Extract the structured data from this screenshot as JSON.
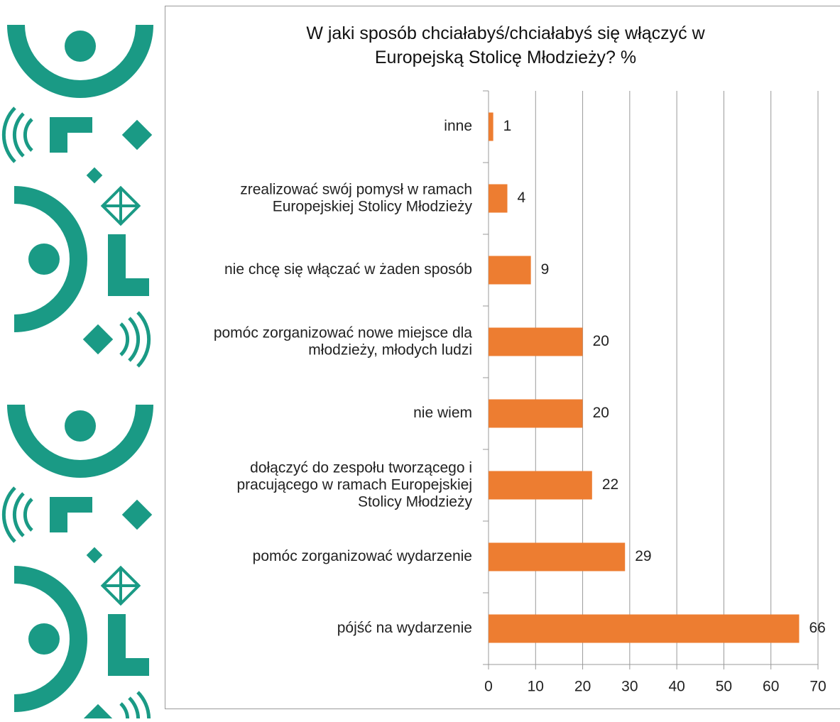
{
  "chart_data": {
    "type": "bar",
    "orientation": "horizontal",
    "title": "W jaki sposób chciałabyś/chciałabyś się włączyć w\nEuropejską Stolicę Młodzieży? %",
    "categories": [
      "inne",
      "zrealizować swój pomysł w ramach\nEuropejskiej Stolicy Młodzieży",
      "nie chcę się włączać w żaden sposób",
      "pomóc zorganizować nowe miejsce dla\nmłodzieży, młodych ludzi",
      "nie wiem",
      "dołączyć do zespołu tworzącego i\npracującego w ramach Europejskiej\nStolicy Młodzieży",
      "pomóc zorganizować wydarzenie",
      "pójść na wydarzenie"
    ],
    "values": [
      1,
      4,
      9,
      20,
      20,
      22,
      29,
      66
    ],
    "color": "#ed7d31",
    "xlim": [
      0,
      70
    ],
    "xticks": [
      0,
      10,
      20,
      30,
      40,
      50,
      60,
      70
    ],
    "grid": true
  }
}
